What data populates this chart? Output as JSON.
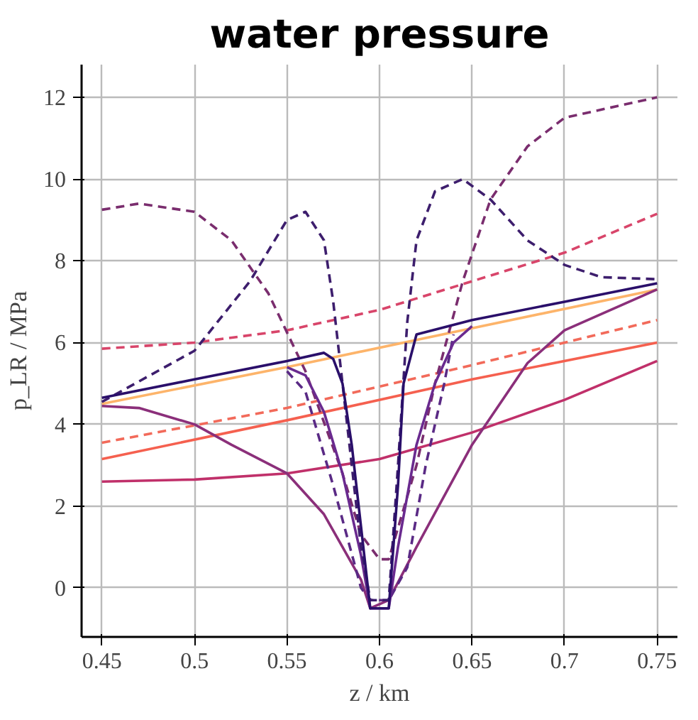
{
  "chart_data": {
    "type": "line",
    "title": "water pressure",
    "xlabel": "z / km",
    "ylabel": "p_LR / MPa",
    "xlim": [
      0.439,
      0.761
    ],
    "ylim": [
      -1.2,
      12.8
    ],
    "xticks": [
      0.45,
      0.5,
      0.55,
      0.6,
      0.65,
      0.7,
      0.75
    ],
    "yticks": [
      0,
      2,
      4,
      6,
      8,
      10,
      12
    ],
    "grid": true,
    "marker": "none",
    "series": [
      {
        "color": "#fdb46a",
        "line_style": "solid",
        "x": [
          0.45,
          0.55,
          0.65,
          0.75
        ],
        "values": [
          4.5,
          5.4,
          6.35,
          7.3
        ]
      },
      {
        "color": "#f5604f",
        "line_style": "solid",
        "x": [
          0.45,
          0.55,
          0.65,
          0.75
        ],
        "values": [
          3.15,
          4.1,
          5.1,
          6.0
        ]
      },
      {
        "color": "#f26a5a",
        "line_style": "dashed",
        "x": [
          0.45,
          0.55,
          0.65,
          0.75
        ],
        "values": [
          3.55,
          4.4,
          5.45,
          6.55
        ]
      },
      {
        "color": "#d8456a",
        "line_style": "dashed",
        "x": [
          0.45,
          0.5,
          0.55,
          0.6,
          0.65,
          0.7,
          0.75
        ],
        "values": [
          5.85,
          6.0,
          6.3,
          6.8,
          7.5,
          8.2,
          9.15
        ]
      },
      {
        "color": "#c0306a",
        "line_style": "solid",
        "x": [
          0.45,
          0.5,
          0.55,
          0.6,
          0.65,
          0.7,
          0.75
        ],
        "values": [
          2.6,
          2.65,
          2.8,
          3.15,
          3.8,
          4.6,
          5.55
        ]
      },
      {
        "color": "#8b2f7a",
        "line_style": "solid",
        "x": [
          0.45,
          0.47,
          0.5,
          0.52,
          0.55,
          0.57,
          0.59,
          0.595,
          0.605,
          0.62,
          0.65,
          0.68,
          0.7,
          0.75
        ],
        "values": [
          4.45,
          4.4,
          4.0,
          3.5,
          2.8,
          1.8,
          0.2,
          -0.5,
          -0.3,
          1.0,
          3.5,
          5.5,
          6.3,
          7.3
        ]
      },
      {
        "color": "#7a2d6e",
        "line_style": "dashed",
        "x": [
          0.45,
          0.47,
          0.5,
          0.52,
          0.54,
          0.56,
          0.58,
          0.59,
          0.6,
          0.605,
          0.62,
          0.63,
          0.645,
          0.66,
          0.68,
          0.7,
          0.75
        ],
        "values": [
          9.25,
          9.4,
          9.2,
          8.5,
          7.2,
          5.3,
          2.8,
          1.3,
          0.7,
          0.7,
          3.0,
          5.0,
          7.5,
          9.5,
          10.8,
          11.5,
          12.0
        ]
      },
      {
        "color": "#5a2a85",
        "line_style": "dashed",
        "x": [
          0.55,
          0.56,
          0.575,
          0.59,
          0.595,
          0.605,
          0.615,
          0.625,
          0.635,
          0.64
        ],
        "values": [
          5.3,
          4.8,
          2.5,
          0.0,
          -0.3,
          -0.3,
          0.5,
          3.0,
          5.0,
          6.2
        ]
      },
      {
        "color": "#6a2a8f",
        "line_style": "solid",
        "x": [
          0.55,
          0.56,
          0.57,
          0.58,
          0.59,
          0.595,
          0.605,
          0.61,
          0.62,
          0.63,
          0.64,
          0.65
        ],
        "values": [
          5.4,
          5.2,
          4.3,
          2.8,
          0.8,
          -0.5,
          -0.5,
          1.0,
          3.5,
          5.0,
          6.0,
          6.4
        ]
      },
      {
        "color": "#3d1e6d",
        "line_style": "dashed",
        "x": [
          0.45,
          0.5,
          0.53,
          0.55,
          0.56,
          0.57,
          0.575,
          0.58,
          0.585,
          0.59,
          0.595,
          0.605,
          0.61,
          0.615,
          0.62,
          0.63,
          0.645,
          0.66,
          0.68,
          0.7,
          0.72,
          0.75
        ],
        "values": [
          4.55,
          5.8,
          7.5,
          9.0,
          9.2,
          8.5,
          7.0,
          5.0,
          3.0,
          1.0,
          -0.3,
          -0.3,
          3.0,
          6.5,
          8.5,
          9.7,
          10.0,
          9.5,
          8.5,
          7.9,
          7.6,
          7.55
        ]
      },
      {
        "color": "#2a0f6a",
        "line_style": "solid",
        "x": [
          0.45,
          0.5,
          0.55,
          0.57,
          0.575,
          0.58,
          0.585,
          0.59,
          0.595,
          0.6,
          0.605,
          0.61,
          0.613,
          0.62,
          0.65,
          0.7,
          0.75
        ],
        "values": [
          4.65,
          5.1,
          5.55,
          5.75,
          5.6,
          5.0,
          3.5,
          1.5,
          -0.5,
          -0.5,
          -0.5,
          2.5,
          5.0,
          6.2,
          6.55,
          7.0,
          7.45
        ]
      }
    ]
  }
}
